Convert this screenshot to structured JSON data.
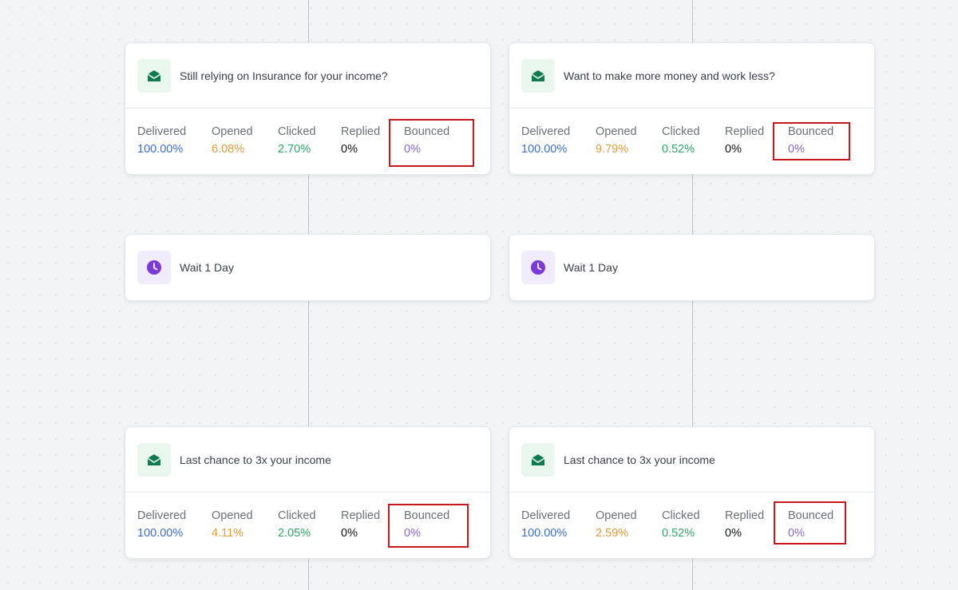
{
  "stat_labels": {
    "delivered": "Delivered",
    "opened": "Opened",
    "clicked": "Clicked",
    "replied": "Replied",
    "bounced": "Bounced"
  },
  "cards": {
    "email_1a": {
      "title": "Still relying on Insurance for your income?",
      "delivered": "100.00%",
      "opened": "6.08%",
      "clicked": "2.70%",
      "replied": "0%",
      "bounced": "0%"
    },
    "email_1b": {
      "title": "Want to make more money and work less?",
      "delivered": "100.00%",
      "opened": "9.79%",
      "clicked": "0.52%",
      "replied": "0%",
      "bounced": "0%"
    },
    "wait_a": {
      "title": "Wait 1 Day"
    },
    "wait_b": {
      "title": "Wait 1 Day"
    },
    "email_2a": {
      "title": "Last chance to 3x your income",
      "delivered": "100.00%",
      "opened": "4.11%",
      "clicked": "2.05%",
      "replied": "0%",
      "bounced": "0%"
    },
    "email_2b": {
      "title": "Last chance to 3x your income",
      "delivered": "100.00%",
      "opened": "2.59%",
      "clicked": "0.52%",
      "replied": "0%",
      "bounced": "0%"
    }
  },
  "icons": {
    "email": "envelope-open-icon",
    "wait": "clock-icon"
  },
  "colors": {
    "delivered": "#3b6fd1",
    "opened": "#e59a3a",
    "clicked": "#2fa566",
    "replied": "#111418",
    "bounced": "#8a67d3",
    "highlight": "#c8161d",
    "email_icon": "#0f7a4f",
    "wait_icon": "#7c3bd8"
  }
}
